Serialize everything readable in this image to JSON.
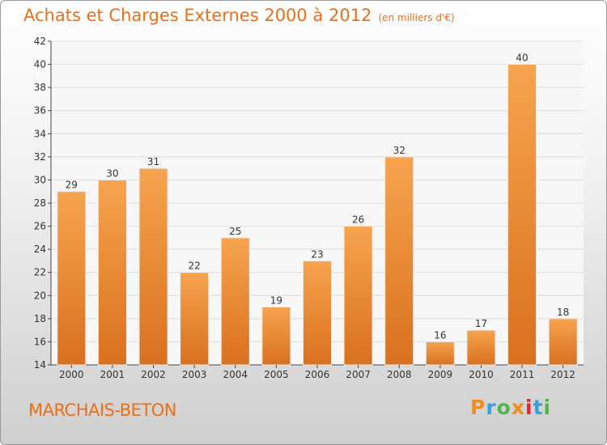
{
  "header": {
    "title": "Achats et Charges Externes 2000 à 2012",
    "unit": "(en milliers d'€)"
  },
  "footer": {
    "commune": "MARCHAIS-BETON",
    "brand": "Proxiti",
    "brand_colors": [
      "#f28c1a",
      "#3aa0d8",
      "#4db848",
      "#f28c1a",
      "#e2242b",
      "#3aa0d8",
      "#4db848"
    ]
  },
  "colors": {
    "accent": "#ef6e14",
    "bar_top": "#f7a44e",
    "bar_bottom": "#d9701f",
    "grid": "#dcdcdc"
  },
  "chart_data": {
    "type": "bar",
    "categories": [
      "2000",
      "2001",
      "2002",
      "2003",
      "2004",
      "2005",
      "2006",
      "2007",
      "2008",
      "2009",
      "2010",
      "2011",
      "2012"
    ],
    "values": [
      29,
      30,
      31,
      22,
      25,
      19,
      23,
      26,
      32,
      16,
      17,
      40,
      18
    ],
    "title": "Achats et Charges Externes 2000 à 2012",
    "unit": "(en milliers d'€)",
    "ylim": [
      14,
      42
    ],
    "yticks": [
      14,
      16,
      18,
      20,
      22,
      24,
      26,
      28,
      30,
      32,
      34,
      36,
      38,
      40,
      42
    ],
    "grid": true,
    "data_labels": true
  }
}
